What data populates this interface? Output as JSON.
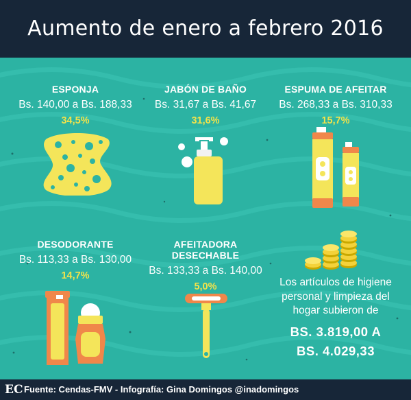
{
  "header": {
    "title": "Aumento de enero a febrero 2016"
  },
  "items": [
    {
      "name": "ESPONJA",
      "range": "Bs. 140,00 a Bs. 188,33",
      "pct": "34,5%",
      "icon": "sponge-icon"
    },
    {
      "name": "JABÓN DE BAÑO",
      "range": "Bs. 31,67 a Bs. 41,67",
      "pct": "31,6%",
      "icon": "soap-dispenser-icon"
    },
    {
      "name": "ESPUMA DE AFEITAR",
      "range": "Bs. 268,33 a Bs. 310,33",
      "pct": "15,7%",
      "icon": "shaving-foam-icon"
    },
    {
      "name": "DESODORANTE",
      "range": "Bs. 113,33 a Bs. 130,00",
      "pct": "14,7%",
      "icon": "deodorant-icon"
    },
    {
      "name": "AFEITADORA DESECHABLE",
      "range": "Bs. 133,33 a Bs. 140,00",
      "pct": "5,0%",
      "icon": "razor-icon"
    }
  ],
  "summary": {
    "text": "Los artículos de higiene personal y limpieza del hogar subieron de",
    "from": "BS. 3.819,00 A",
    "to": "BS. 4.029,33",
    "icon": "coins-icon"
  },
  "footer": {
    "logo": "EC",
    "source": "Fuente: Cendas-FMV - Infografía: Gina Domingos @inadomingos"
  },
  "colors": {
    "background": "#2cb3a3",
    "header": "#172638",
    "accent_yellow": "#f3e34a",
    "orange": "#f0874a"
  }
}
